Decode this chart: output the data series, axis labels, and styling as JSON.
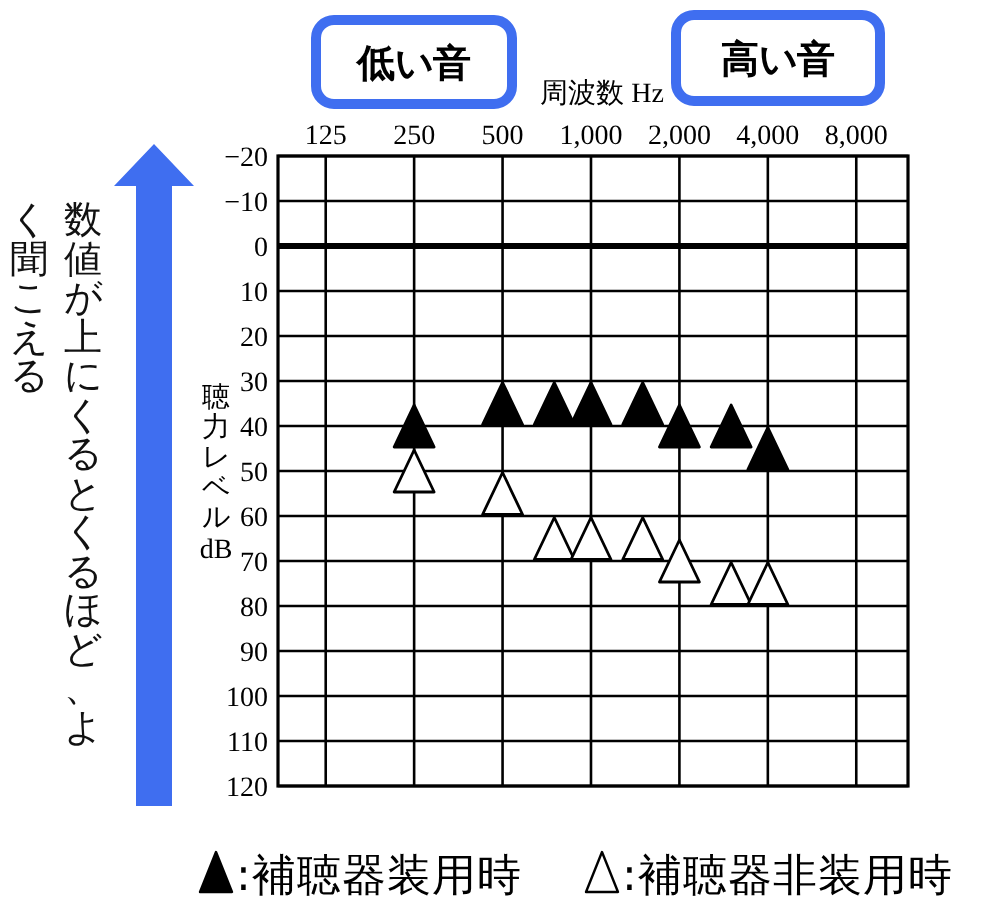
{
  "chart_data": {
    "type": "scatter",
    "xlabel": "周波数 Hz",
    "ylabel": "聴力レベル dB",
    "x": [
      250,
      500,
      750,
      1000,
      1500,
      2000,
      3000,
      4000
    ],
    "series": [
      {
        "name": ":補聴器装用時",
        "color": "#000000",
        "values": [
          40,
          35,
          35,
          35,
          35,
          40,
          40,
          45
        ]
      },
      {
        "name": ":補聴器非装用時",
        "color": "#ffffff",
        "values": [
          50,
          55,
          65,
          65,
          65,
          70,
          75,
          75
        ]
      }
    ],
    "log": "x",
    "xlim": [
      86,
      12000
    ],
    "xticks": [
      125,
      250,
      500,
      {
        "value": 1000,
        "label": "1,000"
      },
      {
        "value": 2000,
        "label": "2,000"
      },
      {
        "value": 4000,
        "label": "4,000"
      },
      {
        "value": 8000,
        "label": "8,000"
      }
    ],
    "ylim": [
      120,
      -20
    ],
    "yticks": [
      {
        "value": -20,
        "label": "−20"
      },
      {
        "value": -10,
        "label": "−10"
      },
      0,
      10,
      20,
      30,
      40,
      50,
      60,
      70,
      80,
      90,
      100,
      110,
      120
    ],
    "grid": true,
    "marker": "triangle",
    "legend": "bottom",
    "ref_lines": [
      {
        "axis": "y",
        "value": 0,
        "color": "#000000"
      }
    ],
    "annotations": [
      "低い音",
      "高い音",
      "数値が上にくるとくるほど、よく聞こえる"
    ]
  }
}
